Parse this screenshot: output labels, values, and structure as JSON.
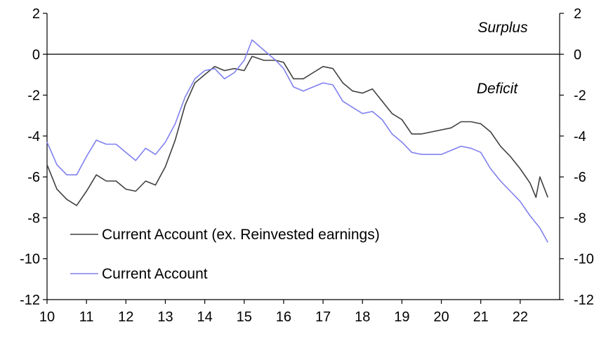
{
  "chart_data": {
    "type": "line",
    "title": "",
    "xlabel": "",
    "ylabel": "",
    "xlim": [
      10,
      23
    ],
    "ylim": [
      -12,
      2
    ],
    "y_ticks": [
      2,
      0,
      -2,
      -4,
      -6,
      -8,
      -10,
      -12
    ],
    "y_tick_labels": [
      "2",
      "0",
      "-2",
      "-4",
      "-6",
      "-8",
      "-10",
      "-12"
    ],
    "x_ticks": [
      10,
      11,
      12,
      13,
      14,
      15,
      16,
      17,
      18,
      19,
      20,
      21,
      22
    ],
    "x_tick_labels": [
      "10",
      "11",
      "12",
      "13",
      "14",
      "15",
      "16",
      "17",
      "18",
      "19",
      "20",
      "21",
      "22"
    ],
    "zero_line": true,
    "grid": false,
    "legend_position": "bottom-left",
    "annotations": [
      {
        "text": "Surplus",
        "x": 21.0,
        "y": 1.3
      },
      {
        "text": "Deficit",
        "x": 21.0,
        "y": -1.7
      }
    ],
    "series": [
      {
        "name": "Current Account (ex. Reinvested earnings)",
        "color": "#404040",
        "x": [
          10.0,
          10.25,
          10.5,
          10.75,
          11.0,
          11.25,
          11.5,
          11.75,
          12.0,
          12.25,
          12.5,
          12.75,
          13.0,
          13.25,
          13.5,
          13.75,
          14.0,
          14.25,
          14.5,
          14.75,
          15.0,
          15.2,
          15.5,
          15.8,
          16.0,
          16.25,
          16.5,
          16.75,
          17.0,
          17.25,
          17.5,
          17.75,
          18.0,
          18.25,
          18.5,
          18.75,
          19.0,
          19.25,
          19.5,
          19.75,
          20.0,
          20.25,
          20.5,
          20.75,
          21.0,
          21.25,
          21.5,
          21.75,
          22.0,
          22.25,
          22.4,
          22.5,
          22.7
        ],
        "y": [
          -5.4,
          -6.6,
          -7.1,
          -7.4,
          -6.7,
          -5.9,
          -6.2,
          -6.2,
          -6.6,
          -6.7,
          -6.2,
          -6.4,
          -5.5,
          -4.2,
          -2.5,
          -1.4,
          -1.0,
          -0.6,
          -0.8,
          -0.7,
          -0.8,
          -0.1,
          -0.3,
          -0.3,
          -0.4,
          -1.2,
          -1.2,
          -0.9,
          -0.6,
          -0.7,
          -1.4,
          -1.8,
          -1.9,
          -1.7,
          -2.3,
          -2.9,
          -3.2,
          -3.9,
          -3.9,
          -3.8,
          -3.7,
          -3.6,
          -3.3,
          -3.3,
          -3.4,
          -3.8,
          -4.5,
          -5.0,
          -5.6,
          -6.3,
          -7.0,
          -6.0,
          -7.0
        ]
      },
      {
        "name": "Current Account",
        "color": "#8080f0",
        "x": [
          10.0,
          10.25,
          10.5,
          10.75,
          11.0,
          11.25,
          11.5,
          11.75,
          12.0,
          12.25,
          12.5,
          12.75,
          13.0,
          13.25,
          13.5,
          13.75,
          14.0,
          14.25,
          14.5,
          14.75,
          15.0,
          15.2,
          15.5,
          15.8,
          16.0,
          16.25,
          16.5,
          16.75,
          17.0,
          17.25,
          17.5,
          17.75,
          18.0,
          18.25,
          18.5,
          18.75,
          19.0,
          19.25,
          19.5,
          19.75,
          20.0,
          20.25,
          20.5,
          20.75,
          21.0,
          21.25,
          21.5,
          21.75,
          22.0,
          22.25,
          22.5,
          22.7
        ],
        "y": [
          -4.3,
          -5.4,
          -5.9,
          -5.9,
          -5.0,
          -4.2,
          -4.4,
          -4.4,
          -4.8,
          -5.2,
          -4.6,
          -4.9,
          -4.3,
          -3.4,
          -2.1,
          -1.2,
          -0.8,
          -0.7,
          -1.2,
          -0.9,
          -0.3,
          0.7,
          0.2,
          -0.3,
          -0.7,
          -1.6,
          -1.8,
          -1.6,
          -1.4,
          -1.5,
          -2.3,
          -2.6,
          -2.9,
          -2.8,
          -3.2,
          -3.9,
          -4.3,
          -4.8,
          -4.9,
          -4.9,
          -4.9,
          -4.7,
          -4.5,
          -4.6,
          -4.8,
          -5.6,
          -6.2,
          -6.7,
          -7.2,
          -7.9,
          -8.5,
          -9.2
        ]
      }
    ]
  }
}
